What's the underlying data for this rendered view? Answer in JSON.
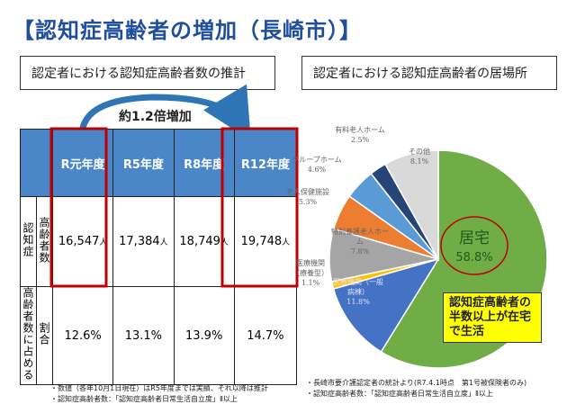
{
  "header": {
    "title": "【認知症高齢者の増加（長崎市）】"
  },
  "left": {
    "heading": "認定者における認知症高齢者数の推計",
    "arrow_label": "約1.2倍増加",
    "notes": [
      "・数値（各年10月1日現在）はR5年度までは実績、それ以降は推計",
      "・認知症高齢者数：「認知症高齢者日常生活自立度」Ⅱ以上"
    ]
  },
  "table": {
    "columns": [
      "R元年度",
      "R5年度",
      "R8年度",
      "R12年度"
    ],
    "rows": [
      {
        "label": [
          "認知症",
          "高齢者数"
        ],
        "cells": [
          "16,547",
          "17,384",
          "18,749",
          "19,748"
        ],
        "unit": "人"
      },
      {
        "label": [
          "高齢者数に占める",
          "割合"
        ],
        "cells": [
          "12.6%",
          "13.1%",
          "13.9%",
          "14.7%"
        ]
      }
    ]
  },
  "chart_data": {
    "type": "pie",
    "title": "認定者における認知症高齢者の居場所",
    "categories": [
      "居宅",
      "医療機関（一般病棟）",
      "医療機関（療養型）",
      "特別養護老人ホーム",
      "老人保健施設",
      "グループホーム",
      "有料老人ホーム",
      "その他"
    ],
    "values": [
      58.8,
      11.8,
      1.1,
      7.8,
      5.3,
      4.6,
      2.5,
      8.1
    ],
    "value_labels": [
      "58.8%",
      "11.8%",
      "1.1%",
      "7.8%",
      "5.3%",
      "4.6%",
      "2.5%",
      "8.1%"
    ],
    "colors": [
      "#70ad47",
      "#4472c4",
      "#ffc000",
      "#a5a5a5",
      "#ed7d31",
      "#5b9bd5",
      "#264478",
      "#d9d9d9"
    ],
    "annotation": "認知症高齢者の半数以上が在宅で生活",
    "notes": [
      "・長崎市要介護認定者の統計より(R7.4.1時点　第1号被保険者のみ)",
      "・認知症高齢者数：「認知症高齢者日常生活自立度」Ⅱ以上"
    ]
  }
}
